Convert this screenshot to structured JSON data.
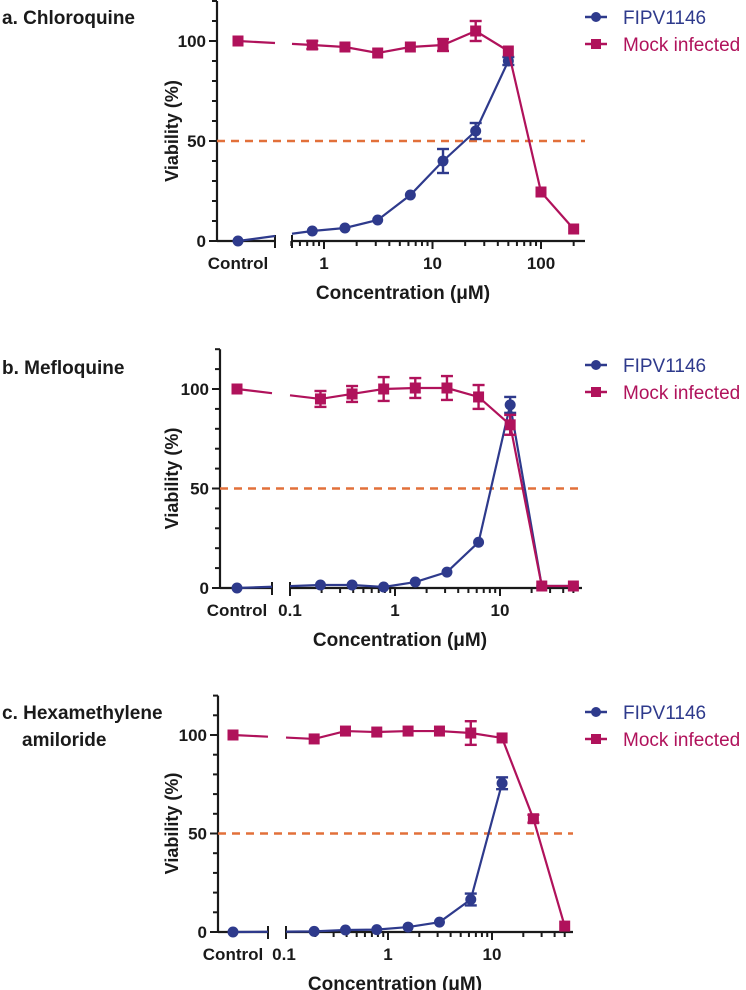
{
  "colors": {
    "fipv": "#2e3a8c",
    "mock": "#b0125b",
    "threshold": "#e2703a",
    "axis": "#1a1a1a"
  },
  "legend": {
    "fipv": "FIPV1146",
    "mock": "Mock infected"
  },
  "chart_data": [
    {
      "type": "line",
      "title": "a. Chloroquine",
      "xlabel": "Concentration (μM)",
      "ylabel": "Viability (%)",
      "xscale": "log with separate Control category",
      "xticks": [
        "Control",
        "1",
        "10",
        "100"
      ],
      "yticks": [
        "0",
        "50",
        "100"
      ],
      "ylim": [
        0,
        120
      ],
      "threshold": 50,
      "legend_position": "top-right",
      "series": [
        {
          "name": "FIPV1146",
          "control": 0,
          "x": [
            0.78,
            1.56,
            3.125,
            6.25,
            12.5,
            25,
            50
          ],
          "y": [
            5,
            6.5,
            10.5,
            23,
            40,
            55,
            90
          ],
          "err": [
            0,
            0,
            0,
            0,
            6,
            4,
            2
          ]
        },
        {
          "name": "Mock infected",
          "control": 100,
          "x": [
            0.78,
            1.56,
            3.125,
            6.25,
            12.5,
            25,
            50,
            100,
            200
          ],
          "y": [
            98,
            97,
            94,
            97,
            98,
            105,
            95,
            24.5,
            6
          ],
          "err": [
            2,
            0,
            0,
            0,
            3,
            5,
            0,
            0,
            0
          ]
        }
      ]
    },
    {
      "type": "line",
      "title": "b. Mefloquine",
      "xlabel": "Concentration (μM)",
      "ylabel": "Viability (%)",
      "xscale": "log with separate Control category",
      "xticks": [
        "Control",
        "0.1",
        "1",
        "10"
      ],
      "yticks": [
        "0",
        "50",
        "100"
      ],
      "ylim": [
        0,
        120
      ],
      "threshold": 50,
      "legend_position": "top-right",
      "series": [
        {
          "name": "FIPV1146",
          "control": 0,
          "x": [
            0.195,
            0.39,
            0.78,
            1.56,
            3.125,
            6.25,
            12.5,
            25,
            50
          ],
          "y": [
            1.5,
            1.5,
            0.5,
            3,
            8,
            23,
            92,
            1,
            1
          ],
          "err": [
            0,
            0,
            0,
            0,
            0,
            0,
            4,
            0,
            0
          ]
        },
        {
          "name": "Mock infected",
          "control": 100,
          "x": [
            0.195,
            0.39,
            0.78,
            1.56,
            3.125,
            6.25,
            12.5,
            25,
            50
          ],
          "y": [
            95,
            97.5,
            100,
            100.5,
            100.5,
            96,
            82,
            1,
            1
          ],
          "err": [
            4,
            4,
            6,
            5,
            6,
            6,
            5,
            0,
            0
          ]
        }
      ]
    },
    {
      "type": "line",
      "title": "c. Hexamethylene amiloride",
      "title_lines": [
        "c. Hexamethylene",
        "amiloride"
      ],
      "xlabel": "Concentration (μM)",
      "ylabel": "Viability (%)",
      "xscale": "log with separate Control category",
      "xticks": [
        "Control",
        "0.1",
        "1",
        "10"
      ],
      "yticks": [
        "0",
        "50",
        "100"
      ],
      "ylim": [
        0,
        120
      ],
      "threshold": 50,
      "legend_position": "top-right",
      "series": [
        {
          "name": "FIPV1146",
          "control": 0,
          "x": [
            0.195,
            0.39,
            0.78,
            1.56,
            3.125,
            6.25,
            12.5
          ],
          "y": [
            0.3,
            1,
            1.2,
            2.5,
            5,
            16.5,
            75.5
          ],
          "err": [
            0,
            0,
            0,
            0,
            0,
            3,
            3
          ]
        },
        {
          "name": "Mock infected",
          "control": 100,
          "x": [
            0.195,
            0.39,
            0.78,
            1.56,
            3.125,
            6.25,
            12.5,
            25,
            50
          ],
          "y": [
            98,
            102,
            101.5,
            102,
            102,
            101,
            98.5,
            57.5,
            3
          ],
          "err": [
            0,
            0,
            0,
            0,
            0,
            6,
            0,
            2,
            0
          ]
        }
      ]
    }
  ]
}
